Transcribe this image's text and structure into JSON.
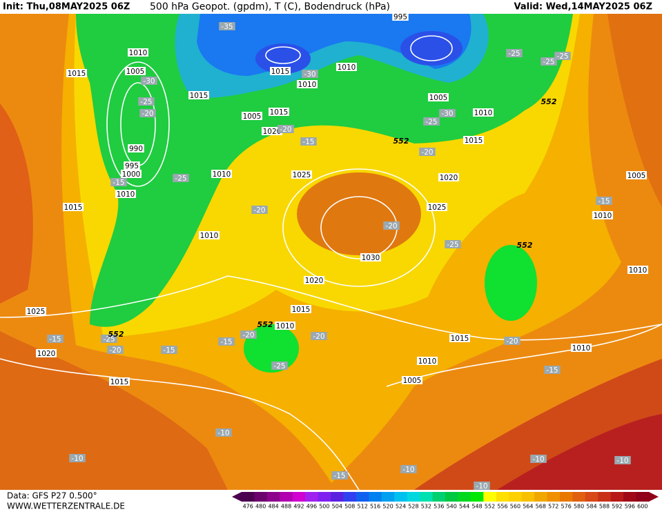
{
  "header": {
    "init": "Init: Thu,08MAY2025 06Z",
    "title": "500 hPa Geopot. (gpdm), T (C), Bodendruck (hPa)",
    "valid": "Valid: Wed,14MAY2025 06Z"
  },
  "footer": {
    "data": "Data: GFS P27 0.500°",
    "site": "WWW.WETTERZENTRALE.DE"
  },
  "map": {
    "pressure_labels": [
      "995",
      "1010",
      "1015",
      "1005",
      "1010",
      "1015",
      "1010",
      "1015",
      "1005",
      "1010",
      "1005",
      "1015",
      "1020",
      "990",
      "995",
      "1000",
      "1010",
      "1010",
      "1015",
      "1025",
      "1020",
      "1025",
      "1015",
      "1010",
      "1030",
      "1020",
      "1015",
      "1010",
      "1025",
      "1020",
      "1015",
      "1015",
      "1010",
      "1005",
      "1005",
      "1010",
      "1010",
      "1010"
    ],
    "temperature_labels": [
      "-35",
      "-25",
      "-25",
      "-25",
      "-30",
      "-30",
      "-25",
      "-20",
      "-25",
      "-30",
      "-20",
      "-15",
      "-20",
      "-25",
      "-15",
      "-20",
      "-20",
      "-25",
      "-15",
      "-20",
      "-15",
      "-15",
      "-20",
      "-20",
      "-25",
      "-15",
      "-25",
      "-20",
      "-15",
      "-10",
      "-10",
      "-10",
      "-15",
      "-10",
      "-10",
      "-10"
    ],
    "height_labels": [
      "552",
      "552",
      "552",
      "552",
      "552"
    ]
  },
  "colorbar": {
    "labels": [
      476,
      480,
      484,
      488,
      492,
      496,
      500,
      504,
      508,
      512,
      516,
      520,
      524,
      528,
      532,
      536,
      540,
      544,
      548,
      552,
      556,
      560,
      564,
      568,
      572,
      576,
      580,
      584,
      588,
      592,
      596,
      600
    ],
    "colors": [
      "#4b0050",
      "#6c006c",
      "#8c008c",
      "#b000b0",
      "#d000d0",
      "#a020f0",
      "#8020f0",
      "#5a20e0",
      "#3040f0",
      "#1060f0",
      "#0080f0",
      "#00a0f0",
      "#00c0f0",
      "#00d8e0",
      "#00e0b0",
      "#00d070",
      "#00c840",
      "#00d820",
      "#00e800",
      "#ffff00",
      "#ffe000",
      "#ffd000",
      "#f8c000",
      "#f0a800",
      "#f09000",
      "#e87800",
      "#e06010",
      "#d84818",
      "#c83018",
      "#b81818",
      "#a00818",
      "#900018"
    ]
  }
}
